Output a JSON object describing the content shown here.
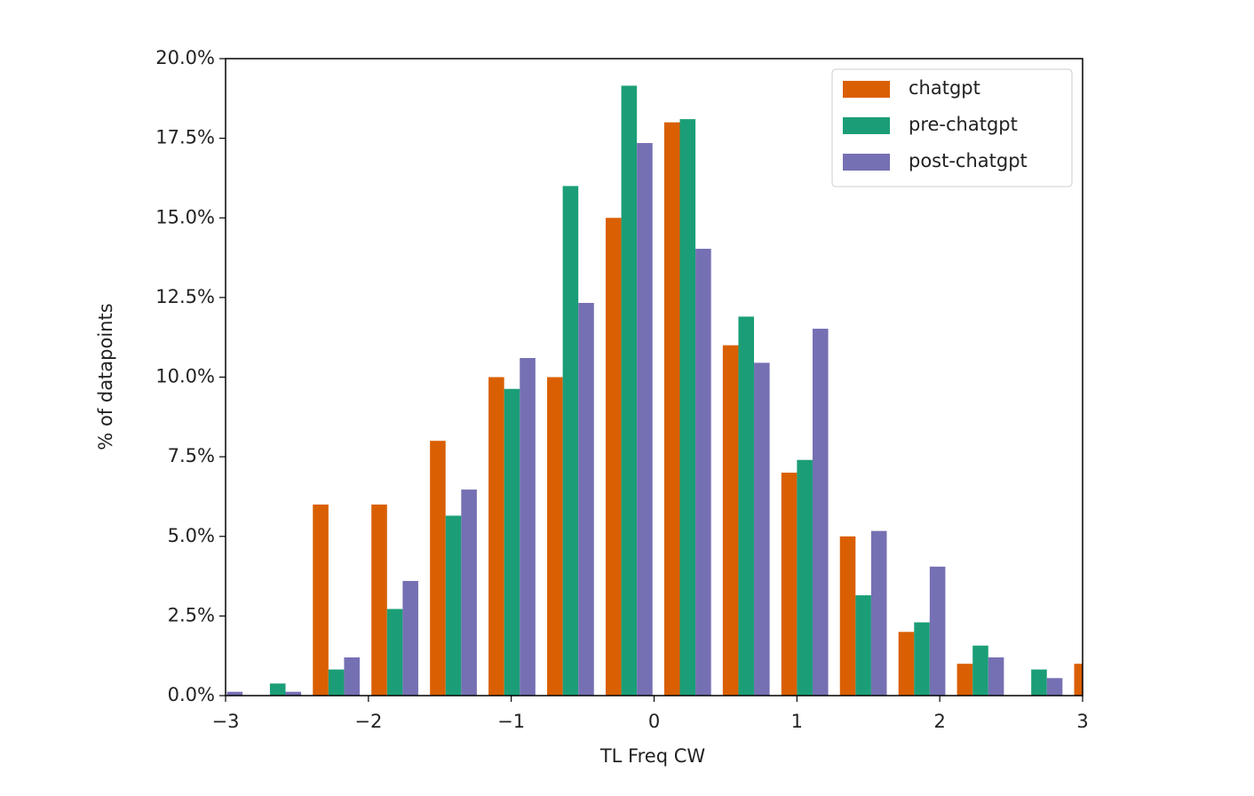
{
  "chart_data": {
    "type": "histogram",
    "x_label": "TL Freq CW",
    "y_label": "% of datapoints",
    "bins": [
      -3.25,
      -2.84,
      -2.43,
      -2.02,
      -1.61,
      -1.2,
      -0.79,
      -0.38,
      0.03,
      0.44,
      0.85,
      1.26,
      1.67,
      2.08,
      2.49,
      2.9,
      3.31
    ],
    "series": [
      {
        "name": "chatgpt",
        "color": "#d95f02",
        "values": [
          0,
          0,
          6.0,
          6.0,
          8.0,
          10.0,
          10.0,
          15.0,
          18.0,
          11.0,
          7.0,
          5.0,
          2.0,
          1.0,
          0,
          1.0
        ]
      },
      {
        "name": "pre-chatgpt",
        "color": "#1b9e77",
        "values": [
          0,
          0.38,
          0.82,
          2.72,
          5.65,
          9.63,
          16.0,
          19.15,
          18.1,
          11.9,
          7.4,
          3.15,
          2.3,
          1.57,
          0.82,
          0
        ]
      },
      {
        "name": "post-chatgpt",
        "color": "#7570b3",
        "values": [
          0.12,
          0.12,
          1.2,
          3.6,
          6.47,
          10.6,
          12.33,
          17.35,
          14.03,
          10.45,
          11.52,
          5.17,
          4.05,
          1.2,
          0.55,
          0
        ]
      }
    ],
    "xlim": [
      -3,
      3
    ],
    "xticks": [
      {
        "value": -3,
        "label": "−3"
      },
      {
        "value": -2,
        "label": "−2"
      },
      {
        "value": -1,
        "label": "−1"
      },
      0,
      1,
      2,
      3
    ],
    "ylim": [
      0,
      20
    ],
    "yticks": [
      {
        "value": 0,
        "label": "0.0%"
      },
      {
        "value": 2.5,
        "label": "2.5%"
      },
      {
        "value": 5,
        "label": "5.0%"
      },
      {
        "value": 7.5,
        "label": "7.5%"
      },
      {
        "value": 10,
        "label": "10.0%"
      },
      {
        "value": 12.5,
        "label": "12.5%"
      },
      {
        "value": 15,
        "label": "15.0%"
      },
      {
        "value": 17.5,
        "label": "17.5%"
      },
      {
        "value": 20,
        "label": "20.0%"
      }
    ],
    "legend": "upper right",
    "grid": false
  }
}
